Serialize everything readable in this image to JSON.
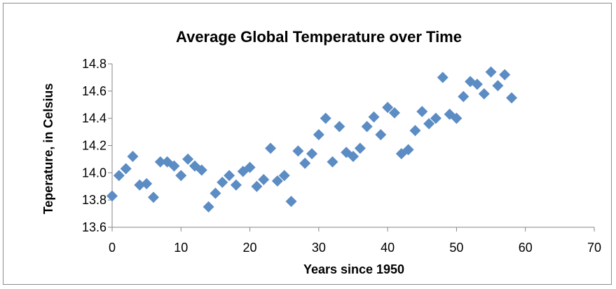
{
  "chart_data": {
    "type": "scatter",
    "title": "Average Global Temperature over Time",
    "xlabel": "Years since 1950",
    "ylabel": "Teperature, in Celsius",
    "xlim": [
      0,
      70
    ],
    "ylim": [
      13.6,
      14.8
    ],
    "x_ticks": [
      "0",
      "10",
      "20",
      "30",
      "40",
      "50",
      "60",
      "70"
    ],
    "y_ticks": [
      "13.6",
      "13.8",
      "14.0",
      "14.2",
      "14.4",
      "14.6",
      "14.8"
    ],
    "x_tick_values": [
      0,
      10,
      20,
      30,
      40,
      50,
      60,
      70
    ],
    "y_tick_values": [
      13.6,
      13.8,
      14.0,
      14.2,
      14.4,
      14.6,
      14.8
    ],
    "grid": false,
    "legend": "none",
    "marker_color": "#5b8cc4",
    "marker_shape": "diamond",
    "series": [
      {
        "points": [
          [
            0,
            13.83
          ],
          [
            1,
            13.98
          ],
          [
            2,
            14.03
          ],
          [
            3,
            14.12
          ],
          [
            4,
            13.91
          ],
          [
            5,
            13.92
          ],
          [
            6,
            13.82
          ],
          [
            7,
            14.08
          ],
          [
            8,
            14.08
          ],
          [
            9,
            14.05
          ],
          [
            10,
            13.98
          ],
          [
            11,
            14.1
          ],
          [
            12,
            14.05
          ],
          [
            13,
            14.02
          ],
          [
            14,
            13.75
          ],
          [
            15,
            13.85
          ],
          [
            16,
            13.93
          ],
          [
            17,
            13.98
          ],
          [
            18,
            13.91
          ],
          [
            19,
            14.01
          ],
          [
            20,
            14.04
          ],
          [
            21,
            13.9
          ],
          [
            22,
            13.95
          ],
          [
            23,
            14.18
          ],
          [
            24,
            13.94
          ],
          [
            25,
            13.98
          ],
          [
            26,
            13.79
          ],
          [
            27,
            14.16
          ],
          [
            28,
            14.07
          ],
          [
            29,
            14.14
          ],
          [
            30,
            14.28
          ],
          [
            31,
            14.4
          ],
          [
            32,
            14.08
          ],
          [
            33,
            14.34
          ],
          [
            34,
            14.15
          ],
          [
            35,
            14.12
          ],
          [
            36,
            14.18
          ],
          [
            37,
            14.34
          ],
          [
            38,
            14.41
          ],
          [
            39,
            14.28
          ],
          [
            40,
            14.48
          ],
          [
            41,
            14.44
          ],
          [
            42,
            14.14
          ],
          [
            43,
            14.17
          ],
          [
            44,
            14.31
          ],
          [
            45,
            14.45
          ],
          [
            46,
            14.36
          ],
          [
            47,
            14.4
          ],
          [
            48,
            14.7
          ],
          [
            49,
            14.43
          ],
          [
            50,
            14.4
          ],
          [
            51,
            14.56
          ],
          [
            52,
            14.67
          ],
          [
            53,
            14.65
          ],
          [
            54,
            14.58
          ],
          [
            55,
            14.74
          ],
          [
            56,
            14.64
          ],
          [
            57,
            14.72
          ],
          [
            58,
            14.55
          ]
        ]
      }
    ]
  }
}
